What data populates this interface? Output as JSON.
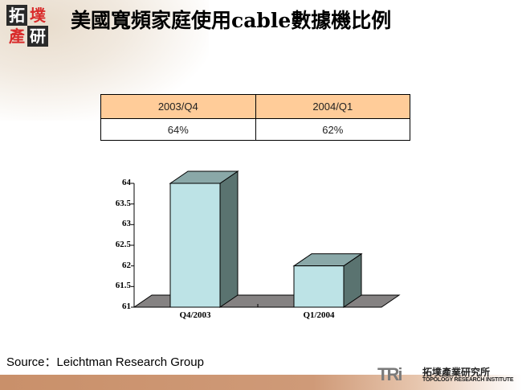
{
  "header": {
    "logo": {
      "chars": [
        "拓",
        "墣",
        "產",
        "研"
      ]
    },
    "title": "美國寬頻家庭使用cable數據機比例"
  },
  "table": {
    "headers": [
      "2003/Q4",
      "2004/Q1"
    ],
    "values": [
      "64%",
      "62%"
    ]
  },
  "chart_data": {
    "type": "bar",
    "style": "3d-column",
    "categories": [
      "Q4/2003",
      "Q1/2004"
    ],
    "values": [
      64,
      62
    ],
    "title": "",
    "xlabel": "",
    "ylabel": "",
    "ylim": [
      61,
      64
    ],
    "yticks": [
      "64",
      "63.5",
      "63",
      "62.5",
      "62",
      "61.5",
      "61"
    ],
    "grid": false,
    "legend": null,
    "colors": {
      "bar_front": "#bde3e6",
      "bar_top": "#8aa8a8",
      "bar_side": "#5a7370",
      "floor": "#858282"
    }
  },
  "footer": {
    "source": "Source：Leichtman Research Group",
    "brand_mark": "TRi",
    "brand_cn": "拓墣產業研究所",
    "brand_en": "TOPOLOGY RESEARCH INSTITUTE"
  }
}
